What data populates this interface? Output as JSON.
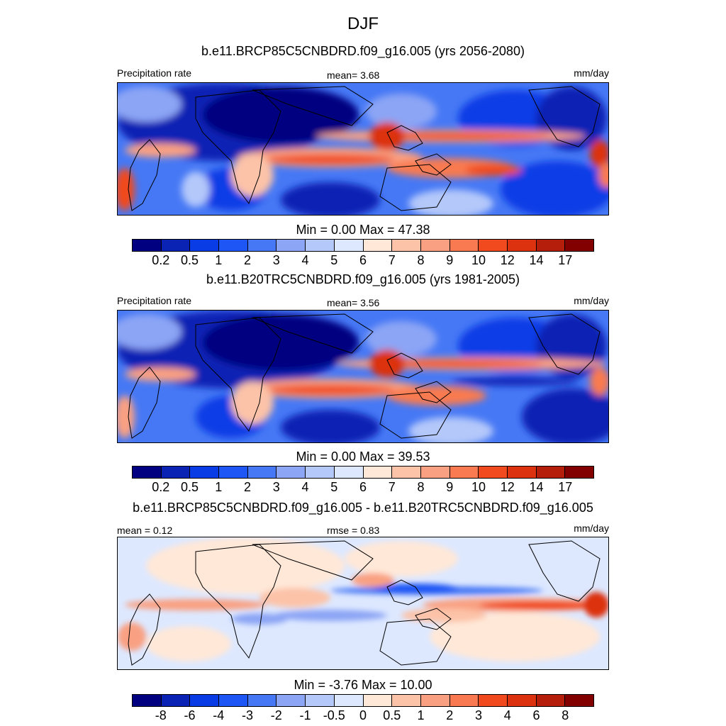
{
  "figure": {
    "title": "DJF"
  },
  "panels": [
    {
      "case_title": "b.e11.BRCP85C5CNBDRD.f09_g16.005 (yrs 2056-2080)",
      "left_label": "Precipitation rate",
      "center_label": "mean=   3.68",
      "right_label": "mm/day",
      "min_max": "Min =   0.00 Max =  47.38",
      "colorbar_kind": "absolute"
    },
    {
      "case_title": "b.e11.B20TRC5CNBDRD.f09_g16.005 (yrs 1981-2005)",
      "left_label": "Precipitation rate",
      "center_label": "mean=   3.56",
      "right_label": "mm/day",
      "min_max": "Min =   0.00 Max =  39.53",
      "colorbar_kind": "absolute"
    },
    {
      "case_title": "b.e11.BRCP85C5CNBDRD.f09_g16.005 - b.e11.B20TRC5CNBDRD.f09_g16.005",
      "left_label": "mean =   0.12",
      "center_label": "rmse =   0.83",
      "right_label": "mm/day",
      "min_max": "Min =  -3.76 Max =  10.00",
      "colorbar_kind": "difference"
    }
  ],
  "colorbars": {
    "absolute": {
      "colors": [
        "#000080",
        "#0a23b4",
        "#0a3ce6",
        "#1e55f5",
        "#4678f5",
        "#8ca5f5",
        "#b4c8fa",
        "#dde8ff",
        "#ffe8d8",
        "#fcc3a8",
        "#f9a082",
        "#f97a50",
        "#f04a1e",
        "#dc3210",
        "#b41e0a",
        "#820000"
      ],
      "ticks": [
        "0.2",
        "0.5",
        "1",
        "2",
        "3",
        "4",
        "5",
        "6",
        "7",
        "8",
        "9",
        "10",
        "12",
        "14",
        "17"
      ]
    },
    "difference": {
      "colors": [
        "#000080",
        "#0a23b4",
        "#0a3ce6",
        "#1e55f5",
        "#4678f5",
        "#8ca5f5",
        "#b4c8fa",
        "#dde8ff",
        "#ffe8d8",
        "#fcc3a8",
        "#f9a082",
        "#f97a50",
        "#f04a1e",
        "#dc3210",
        "#b41e0a",
        "#820000"
      ],
      "ticks": [
        "-8",
        "-6",
        "-4",
        "-3",
        "-2",
        "-1",
        "-0.5",
        "0",
        "0.5",
        "1",
        "2",
        "3",
        "4",
        "6",
        "8"
      ]
    }
  }
}
